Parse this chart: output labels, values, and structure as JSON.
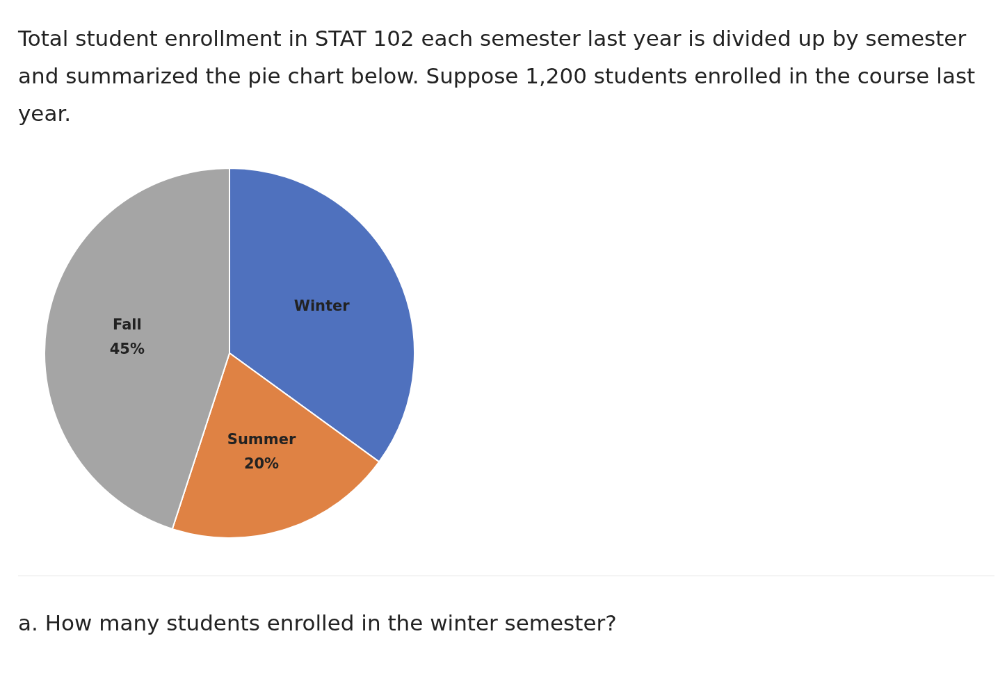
{
  "chart_data": {
    "type": "pie",
    "title": "Total student enrollment in STAT 102 each semester last year is divided up by semester and summarized the pie chart below. Suppose 1,200 students enrolled in the course last year.",
    "categories": [
      "Winter",
      "Summer",
      "Fall"
    ],
    "values": [
      35,
      20,
      45
    ],
    "colors": [
      "#4f71be",
      "#df8244",
      "#a5a5a5"
    ],
    "value_labels": [
      null,
      "20%",
      "45%"
    ],
    "annotations": [
      "a. How many students enrolled in the winter semester?"
    ]
  }
}
